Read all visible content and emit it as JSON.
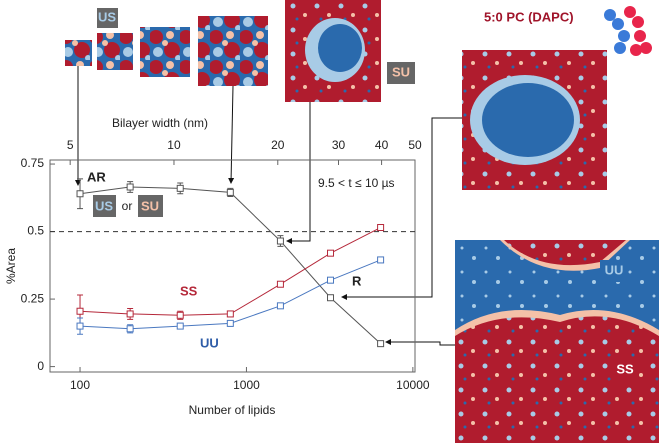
{
  "chart_data": {
    "type": "line",
    "xlabel": "Number of lipids",
    "ylabel": "%Area",
    "x2label": "Bilayer width (nm)",
    "x": [
      100,
      200,
      400,
      800,
      1600,
      3200,
      6400
    ],
    "xlim": [
      66,
      10300
    ],
    "xticks": [
      100,
      1000,
      10000
    ],
    "xscale": "log",
    "x2lim": [
      4.37,
      50
    ],
    "x2ticks": [
      5,
      10,
      20,
      30,
      40,
      50
    ],
    "x2scale": "log",
    "ylim": [
      -0.02,
      0.765
    ],
    "yticks": [
      0,
      0.25,
      0.5,
      0.75
    ],
    "hline": 0.5,
    "series": [
      {
        "name": "AR",
        "color": "#555555",
        "values": [
          0.64,
          0.665,
          0.66,
          0.645,
          0.465,
          0.255,
          0.085
        ],
        "errors": [
          0.055,
          0.02,
          0.02,
          0.015,
          0.02,
          0.01,
          0.01
        ]
      },
      {
        "name": "SS",
        "color": "#b5283a",
        "values": [
          0.205,
          0.195,
          0.19,
          0.195,
          0.305,
          0.42,
          0.515
        ],
        "errors": [
          0.06,
          0.02,
          0.015,
          0.01,
          0.01,
          0.01,
          0.01
        ]
      },
      {
        "name": "UU",
        "color": "#4a78c0",
        "values": [
          0.15,
          0.14,
          0.15,
          0.16,
          0.225,
          0.32,
          0.395
        ],
        "errors": [
          0.03,
          0.015,
          0.01,
          0.01,
          0.01,
          0.01,
          0.01
        ]
      }
    ],
    "annotations": [
      "R",
      "US",
      "or",
      "SU",
      "9.5 < t ≤ 10 µs",
      "US",
      "SU",
      "5:0 PC (DAPC)",
      "UU",
      "SS"
    ]
  }
}
